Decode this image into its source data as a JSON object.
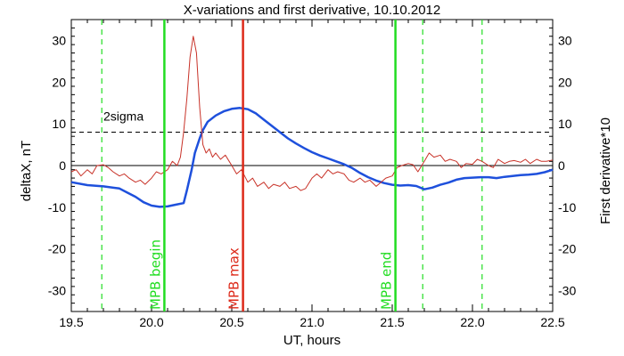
{
  "chart_data": {
    "type": "line",
    "title": "X-variations and first derivative, 10.10.2012",
    "xlabel": "UT, hours",
    "ylabel_left": "deltaX, nT",
    "ylabel_right": "First derivative*10",
    "xlim": [
      19.5,
      22.5
    ],
    "ylim": [
      -35,
      35
    ],
    "x_ticks": [
      19.5,
      20.0,
      20.5,
      21.0,
      21.5,
      22.0,
      22.5
    ],
    "x_tick_labels": [
      "19.5",
      "20.0",
      "20.5",
      "21.0",
      "21.5",
      "22.0",
      "22.5"
    ],
    "y_ticks": [
      -30,
      -20,
      -10,
      0,
      10,
      20,
      30
    ],
    "y_tick_labels": [
      "-30",
      "-20",
      "-10",
      "0",
      "10",
      "20",
      "30"
    ],
    "colors": {
      "deltax": "#1e50dc",
      "derivative": "#c83228",
      "mpb_boundary": "#22dd22",
      "mpb_max": "#dd2a1a",
      "left_label": "#1e50dc",
      "right_label": "#d03020"
    },
    "series": [
      {
        "key": "deltax",
        "x": [
          19.5,
          19.6,
          19.7,
          19.8,
          19.85,
          19.9,
          19.95,
          20.0,
          20.05,
          20.1,
          20.15,
          20.2,
          20.22,
          20.25,
          20.27,
          20.3,
          20.32,
          20.35,
          20.4,
          20.45,
          20.5,
          20.55,
          20.6,
          20.65,
          20.7,
          20.75,
          20.8,
          20.85,
          20.9,
          20.95,
          21.0,
          21.05,
          21.1,
          21.15,
          21.2,
          21.25,
          21.3,
          21.35,
          21.4,
          21.45,
          21.5,
          21.55,
          21.6,
          21.65,
          21.7,
          21.75,
          21.8,
          21.85,
          21.9,
          21.95,
          22.0,
          22.05,
          22.1,
          22.15,
          22.2,
          22.25,
          22.3,
          22.35,
          22.4,
          22.45,
          22.5
        ],
        "values": [
          -4,
          -4.7,
          -5,
          -5.5,
          -6.5,
          -7.5,
          -8.8,
          -9.6,
          -9.9,
          -9.8,
          -9.4,
          -9,
          -6,
          -1,
          3,
          6.5,
          8.5,
          10.5,
          12,
          13,
          13.6,
          13.8,
          13.5,
          12.5,
          11,
          9.5,
          8,
          6.5,
          5.3,
          4.2,
          3.2,
          2.4,
          1.7,
          1,
          0.3,
          -0.6,
          -1.8,
          -2.8,
          -3.6,
          -4.2,
          -4.6,
          -4.8,
          -4.7,
          -4.9,
          -5.7,
          -5.3,
          -4.6,
          -4.1,
          -3.4,
          -3,
          -2.9,
          -2.8,
          -2.8,
          -3,
          -2.7,
          -2.5,
          -2.3,
          -2.2,
          -2,
          -1.6,
          -1
        ]
      },
      {
        "key": "derivative",
        "x": [
          19.5,
          19.53,
          19.56,
          19.6,
          19.63,
          19.66,
          19.7,
          19.73,
          19.76,
          19.8,
          19.83,
          19.86,
          19.9,
          19.93,
          19.96,
          20.0,
          20.03,
          20.06,
          20.1,
          20.13,
          20.16,
          20.18,
          20.2,
          20.22,
          20.24,
          20.26,
          20.28,
          20.3,
          20.32,
          20.34,
          20.36,
          20.38,
          20.4,
          20.43,
          20.46,
          20.5,
          20.53,
          20.56,
          20.6,
          20.63,
          20.66,
          20.7,
          20.73,
          20.76,
          20.8,
          20.83,
          20.86,
          20.9,
          20.93,
          20.96,
          21.0,
          21.03,
          21.06,
          21.1,
          21.13,
          21.16,
          21.2,
          21.23,
          21.26,
          21.3,
          21.33,
          21.36,
          21.4,
          21.43,
          21.46,
          21.5,
          21.53,
          21.56,
          21.6,
          21.63,
          21.66,
          21.7,
          21.73,
          21.76,
          21.8,
          21.83,
          21.86,
          21.9,
          21.93,
          21.96,
          22.0,
          22.03,
          22.06,
          22.1,
          22.13,
          22.16,
          22.2,
          22.23,
          22.26,
          22.3,
          22.33,
          22.36,
          22.4,
          22.43,
          22.46,
          22.5
        ],
        "values": [
          -1.5,
          -1,
          -2.5,
          -1,
          -2,
          0,
          0.2,
          -0.5,
          -1.5,
          -2.5,
          -2,
          -3,
          -4,
          -3.5,
          -4.5,
          -3,
          -1.5,
          -2,
          -1,
          1,
          0,
          2,
          8,
          16,
          26,
          31,
          27,
          14,
          5,
          3,
          4,
          2,
          3,
          1.5,
          2.5,
          0,
          -2,
          -1,
          -4,
          -3,
          -5,
          -4,
          -5.5,
          -4.5,
          -5,
          -4,
          -5.5,
          -5,
          -6,
          -5.5,
          -3,
          -2,
          -3,
          -1,
          -2,
          -1.5,
          -2,
          -3.5,
          -4,
          -3,
          -4,
          -3.5,
          -5,
          -4,
          -3,
          -2.5,
          -0.5,
          0,
          0.5,
          0.2,
          -1.5,
          1,
          3,
          2,
          2.5,
          1,
          1.5,
          1,
          -0.5,
          0.5,
          0.3,
          1.5,
          1,
          0,
          -0.5,
          1.5,
          0.5,
          1,
          1.2,
          0.8,
          1.5,
          0.5,
          1.5,
          1,
          1,
          1.3
        ]
      }
    ],
    "reference_lines": [
      {
        "key": "two-sigma",
        "y": 8,
        "label": "2sigma"
      },
      {
        "key": "zero",
        "y": 0
      }
    ],
    "vertical_markers": [
      {
        "key": "mpb-begin",
        "x": 20.08,
        "label": "MPB begin",
        "style": "solid-green"
      },
      {
        "key": "mpb-max",
        "x": 20.57,
        "label": "MPB max",
        "style": "solid-red"
      },
      {
        "key": "mpb-end",
        "x": 21.52,
        "label": "MPB end",
        "style": "solid-green"
      },
      {
        "key": "dash-1",
        "x": 19.69,
        "style": "dashed-green"
      },
      {
        "key": "dash-2",
        "x": 21.69,
        "style": "dashed-green"
      },
      {
        "key": "dash-3",
        "x": 22.06,
        "style": "dashed-green"
      }
    ]
  }
}
